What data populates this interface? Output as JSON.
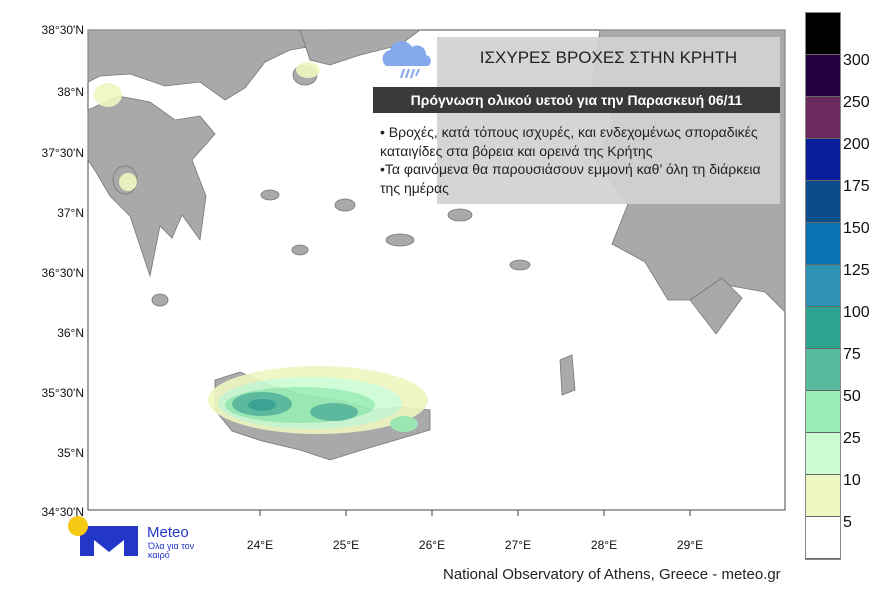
{
  "map": {
    "lat_labels": [
      "38°30'N",
      "38°N",
      "37°30'N",
      "37°N",
      "36°30'N",
      "36°N",
      "35°30'N",
      "35°N",
      "34°30'N"
    ],
    "lon_labels": [
      "24°E",
      "25°E",
      "26°E",
      "27°E",
      "28°E",
      "29°E"
    ],
    "land_color": "#a9a9a9",
    "sea_color": "#ffffff"
  },
  "info": {
    "title": "ΙΣΧΥΡΕΣ ΒΡΟΧΕΣ ΣΤΗΝ ΚΡΗΤΗ",
    "subtitle": "Πρόγνωση ολικού υετού για την Παρασκευή  06/11",
    "bullet1": "• Βροχές, κατά τόπους ισχυρές, και ενδεχομένως σποραδικές καταιγίδες στα βόρεια και ορεινά της Κρήτης",
    "bullet2": "•Τα φαινόμενα θα παρουσιάσουν εμμονή  καθ’ όλη τη διάρκεια της ημέρας",
    "icon": "rain-cloud-icon"
  },
  "legend": {
    "labels": [
      "300",
      "250",
      "200",
      "175",
      "150",
      "125",
      "100",
      "75",
      "50",
      "25",
      "10",
      "5"
    ],
    "colors": [
      "#000000",
      "#24003f",
      "#6a2a5e",
      "#0a1f9c",
      "#0a4d8a",
      "#0a72b0",
      "#2f93b5",
      "#2ea392",
      "#55bb9c",
      "#9aeeb5",
      "#ccfcd4",
      "#eef7c2",
      "#ffffff"
    ]
  },
  "logo": {
    "name": "Meteo",
    "tagline": "Όλα για τον καιρό"
  },
  "credit": "National Observatory of Athens, Greece - meteo.gr"
}
